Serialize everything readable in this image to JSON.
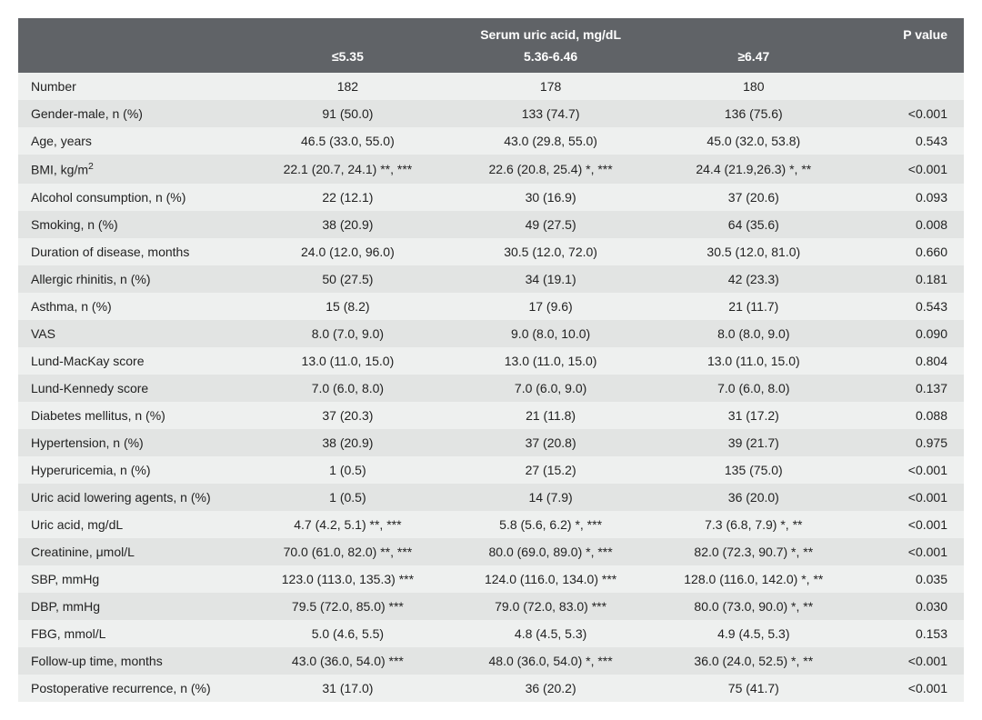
{
  "table": {
    "type": "table",
    "header": {
      "title": "Serum uric acid, mg/dL",
      "pvalue_label": "P value",
      "groups": [
        "≤5.35",
        "5.36-6.46",
        "≥6.47"
      ]
    },
    "style": {
      "header_bg": "#606367",
      "header_text_color": "#ffffff",
      "row_bg_odd": "#eef0ef",
      "row_bg_even": "#e2e4e3",
      "font_family": "Myriad Pro, Segoe UI, Arial, sans-serif",
      "font_size_pt": 11,
      "col_widths_pct": [
        22,
        23,
        23,
        23,
        9
      ],
      "label_align": "left",
      "value_align": "center",
      "p_align": "right"
    },
    "rows": [
      {
        "label": "Number",
        "g1": "182",
        "g2": "178",
        "g3": "180",
        "p": ""
      },
      {
        "label": "Gender-male, n (%)",
        "g1": "91 (50.0)",
        "g2": "133 (74.7)",
        "g3": "136 (75.6)",
        "p": "<0.001"
      },
      {
        "label": "Age, years",
        "g1": "46.5 (33.0, 55.0)",
        "g2": "43.0 (29.8, 55.0)",
        "g3": "45.0 (32.0, 53.8)",
        "p": "0.543"
      },
      {
        "label_html": "BMI, kg/m<sup>2</sup>",
        "label": "BMI, kg/m2",
        "g1": "22.1 (20.7, 24.1) **, ***",
        "g2": "22.6 (20.8, 25.4) *, ***",
        "g3": "24.4 (21.9,26.3) *, **",
        "p": "<0.001"
      },
      {
        "label": "Alcohol consumption, n (%)",
        "g1": "22 (12.1)",
        "g2": "30 (16.9)",
        "g3": "37 (20.6)",
        "p": "0.093"
      },
      {
        "label": "Smoking, n (%)",
        "g1": "38 (20.9)",
        "g2": "49 (27.5)",
        "g3": "64 (35.6)",
        "p": "0.008"
      },
      {
        "label": "Duration of disease, months",
        "g1": "24.0 (12.0, 96.0)",
        "g2": "30.5 (12.0, 72.0)",
        "g3": "30.5 (12.0, 81.0)",
        "p": "0.660"
      },
      {
        "label": "Allergic rhinitis, n (%)",
        "g1": "50 (27.5)",
        "g2": "34 (19.1)",
        "g3": "42 (23.3)",
        "p": "0.181"
      },
      {
        "label": "Asthma, n (%)",
        "g1": "15 (8.2)",
        "g2": "17 (9.6)",
        "g3": "21 (11.7)",
        "p": "0.543"
      },
      {
        "label": "VAS",
        "g1": "8.0 (7.0, 9.0)",
        "g2": "9.0 (8.0, 10.0)",
        "g3": "8.0 (8.0, 9.0)",
        "p": "0.090"
      },
      {
        "label": "Lund-MacKay score",
        "g1": "13.0 (11.0, 15.0)",
        "g2": "13.0 (11.0, 15.0)",
        "g3": "13.0 (11.0, 15.0)",
        "p": "0.804"
      },
      {
        "label": "Lund-Kennedy score",
        "g1": "7.0 (6.0, 8.0)",
        "g2": "7.0 (6.0, 9.0)",
        "g3": "7.0 (6.0, 8.0)",
        "p": "0.137"
      },
      {
        "label": "Diabetes mellitus, n (%)",
        "g1": "37 (20.3)",
        "g2": "21 (11.8)",
        "g3": "31 (17.2)",
        "p": "0.088"
      },
      {
        "label": "Hypertension, n (%)",
        "g1": "38 (20.9)",
        "g2": "37 (20.8)",
        "g3": "39 (21.7)",
        "p": "0.975"
      },
      {
        "label": "Hyperuricemia, n (%)",
        "g1": "1 (0.5)",
        "g2": "27 (15.2)",
        "g3": "135 (75.0)",
        "p": "<0.001"
      },
      {
        "label": "Uric acid lowering agents, n (%)",
        "g1": "1 (0.5)",
        "g2": "14 (7.9)",
        "g3": "36 (20.0)",
        "p": "<0.001"
      },
      {
        "label": "Uric acid, mg/dL",
        "g1": "4.7 (4.2, 5.1) **, ***",
        "g2": "5.8 (5.6, 6.2) *, ***",
        "g3": "7.3 (6.8, 7.9) *, **",
        "p": "<0.001"
      },
      {
        "label": "Creatinine, μmol/L",
        "g1": "70.0 (61.0, 82.0) **, ***",
        "g2": "80.0 (69.0, 89.0) *, ***",
        "g3": "82.0 (72.3, 90.7) *, **",
        "p": "<0.001"
      },
      {
        "label": "SBP, mmHg",
        "g1": "123.0 (113.0, 135.3) ***",
        "g2": "124.0 (116.0, 134.0) ***",
        "g3": "128.0 (116.0, 142.0) *, **",
        "p": "0.035"
      },
      {
        "label": "DBP, mmHg",
        "g1": "79.5 (72.0, 85.0) ***",
        "g2": "79.0 (72.0, 83.0) ***",
        "g3": "80.0 (73.0, 90.0) *, **",
        "p": "0.030"
      },
      {
        "label": "FBG, mmol/L",
        "g1": "5.0 (4.6, 5.5)",
        "g2": "4.8 (4.5, 5.3)",
        "g3": "4.9 (4.5, 5.3)",
        "p": "0.153"
      },
      {
        "label": "Follow-up time, months",
        "g1": "43.0 (36.0, 54.0) ***",
        "g2": "48.0 (36.0, 54.0) *, ***",
        "g3": "36.0 (24.0, 52.5) *, **",
        "p": "<0.001"
      },
      {
        "label": "Postoperative recurrence, n (%)",
        "g1": "31 (17.0)",
        "g2": "36 (20.2)",
        "g3": "75 (41.7)",
        "p": "<0.001"
      }
    ]
  }
}
